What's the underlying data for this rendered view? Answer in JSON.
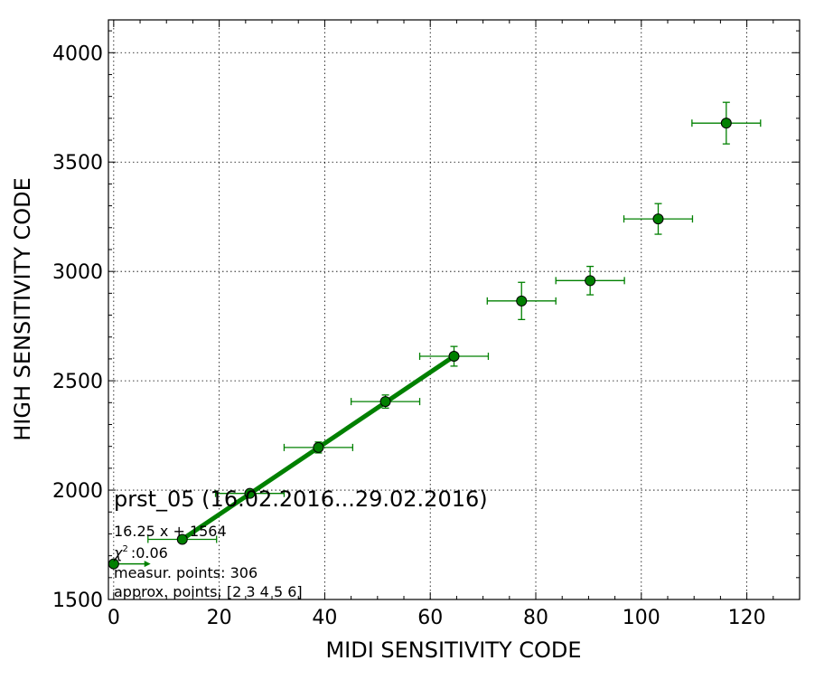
{
  "chart_data": {
    "type": "scatter",
    "title": "prst_05 (16.02.2016...29.02.2016)",
    "xlabel": "MIDI SENSITIVITY CODE",
    "ylabel": "HIGH SENSITIVITY CODE",
    "xlim": [
      -1,
      130
    ],
    "ylim": [
      1500,
      4150
    ],
    "xticks": [
      0,
      20,
      40,
      60,
      80,
      100,
      120
    ],
    "yticks": [
      1500,
      2000,
      2500,
      3000,
      3500,
      4000
    ],
    "grid": true,
    "color": "#008000",
    "points": [
      {
        "x": 0,
        "y": 1663,
        "xerr": 0,
        "yerr": 0
      },
      {
        "x": 13,
        "y": 1775,
        "xerr": 6.5,
        "yerr": 10
      },
      {
        "x": 25.8,
        "y": 1985,
        "xerr": 6.5,
        "yerr": 15
      },
      {
        "x": 38.8,
        "y": 2195,
        "xerr": 6.5,
        "yerr": 25
      },
      {
        "x": 51.5,
        "y": 2405,
        "xerr": 6.5,
        "yerr": 30
      },
      {
        "x": 64.5,
        "y": 2612,
        "xerr": 6.5,
        "yerr": 45
      },
      {
        "x": 77.3,
        "y": 2865,
        "xerr": 6.5,
        "yerr": 85
      },
      {
        "x": 90.3,
        "y": 2958,
        "xerr": 6.5,
        "yerr": 65
      },
      {
        "x": 103.2,
        "y": 3240,
        "xerr": 6.5,
        "yerr": 70
      },
      {
        "x": 116.1,
        "y": 3678,
        "xerr": 6.5,
        "yerr": 95
      }
    ],
    "fit": {
      "slope": 16.25,
      "intercept": 1564,
      "x_range": [
        13,
        64.5
      ]
    },
    "arrow": {
      "x_from": 0,
      "x_to": 7,
      "y": 1663
    },
    "annotations": [
      "16.25 x + 1564",
      ":0.06",
      "measur. points: 306",
      "approx. points: [2 3 4 5 6]"
    ],
    "chi_symbol": "χ",
    "chi_sup": "2"
  }
}
